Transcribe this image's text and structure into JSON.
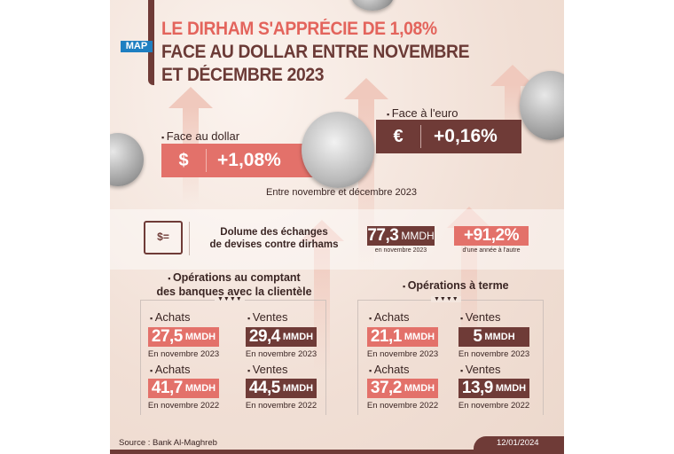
{
  "logo": "MAP",
  "title": {
    "line1": "LE DIRHAM S'APPRÉCIE DE 1,08%",
    "line2": "FACE AU DOLLAR ENTRE NOVEMBRE",
    "line3": "ET DÉCEMBRE 2023"
  },
  "dollar": {
    "label": "Face au dollar",
    "value": "+1,08%",
    "icon": "dollar-hand-icon"
  },
  "euro": {
    "label": "Face à l'euro",
    "value": "+0,16%",
    "icon": "euro-hand-icon"
  },
  "period": "Entre novembre et décembre 2023",
  "volume": {
    "line1": "Dolume des échanges",
    "line2": "de devises contre dirhams",
    "value": "77,3",
    "unit": "MMDH",
    "value_caption": "en novembre 2023",
    "change": "+91,2%",
    "change_caption": "d'une année à l'autre"
  },
  "spot": {
    "title1": "Opérations au comptant",
    "title2": "des banques avec la clientèle",
    "items": [
      {
        "label": "Achats",
        "value": "27,5",
        "unit": "MMDH",
        "caption": "En novembre 2023"
      },
      {
        "label": "Ventes",
        "value": "29,4",
        "unit": "MMDH",
        "caption": "En novembre 2023"
      },
      {
        "label": "Achats",
        "value": "41,7",
        "unit": "MMDH",
        "caption": "En novembre 2022"
      },
      {
        "label": "Ventes",
        "value": "44,5",
        "unit": "MMDH",
        "caption": "En novembre 2022"
      }
    ]
  },
  "forward": {
    "title": "Opérations à terme",
    "items": [
      {
        "label": "Achats",
        "value": "21,1",
        "unit": "MMDH",
        "caption": "En novembre 2023"
      },
      {
        "label": "Ventes",
        "value": "5",
        "unit": "MMDH",
        "caption": "En novembre 2023"
      },
      {
        "label": "Achats",
        "value": "37,2",
        "unit": "MMDH",
        "caption": "En novembre 2022"
      },
      {
        "label": "Ventes",
        "value": "13,9",
        "unit": "MMDH",
        "caption": "En novembre 2022"
      }
    ]
  },
  "markers": "▼▼▼▼",
  "footer": {
    "source": "Source : Bank Al-Maghreb",
    "date": "12/01/2024"
  },
  "colors": {
    "salmon": "#e3716a",
    "brown": "#6f3b37",
    "background": "#f1dfd5"
  }
}
